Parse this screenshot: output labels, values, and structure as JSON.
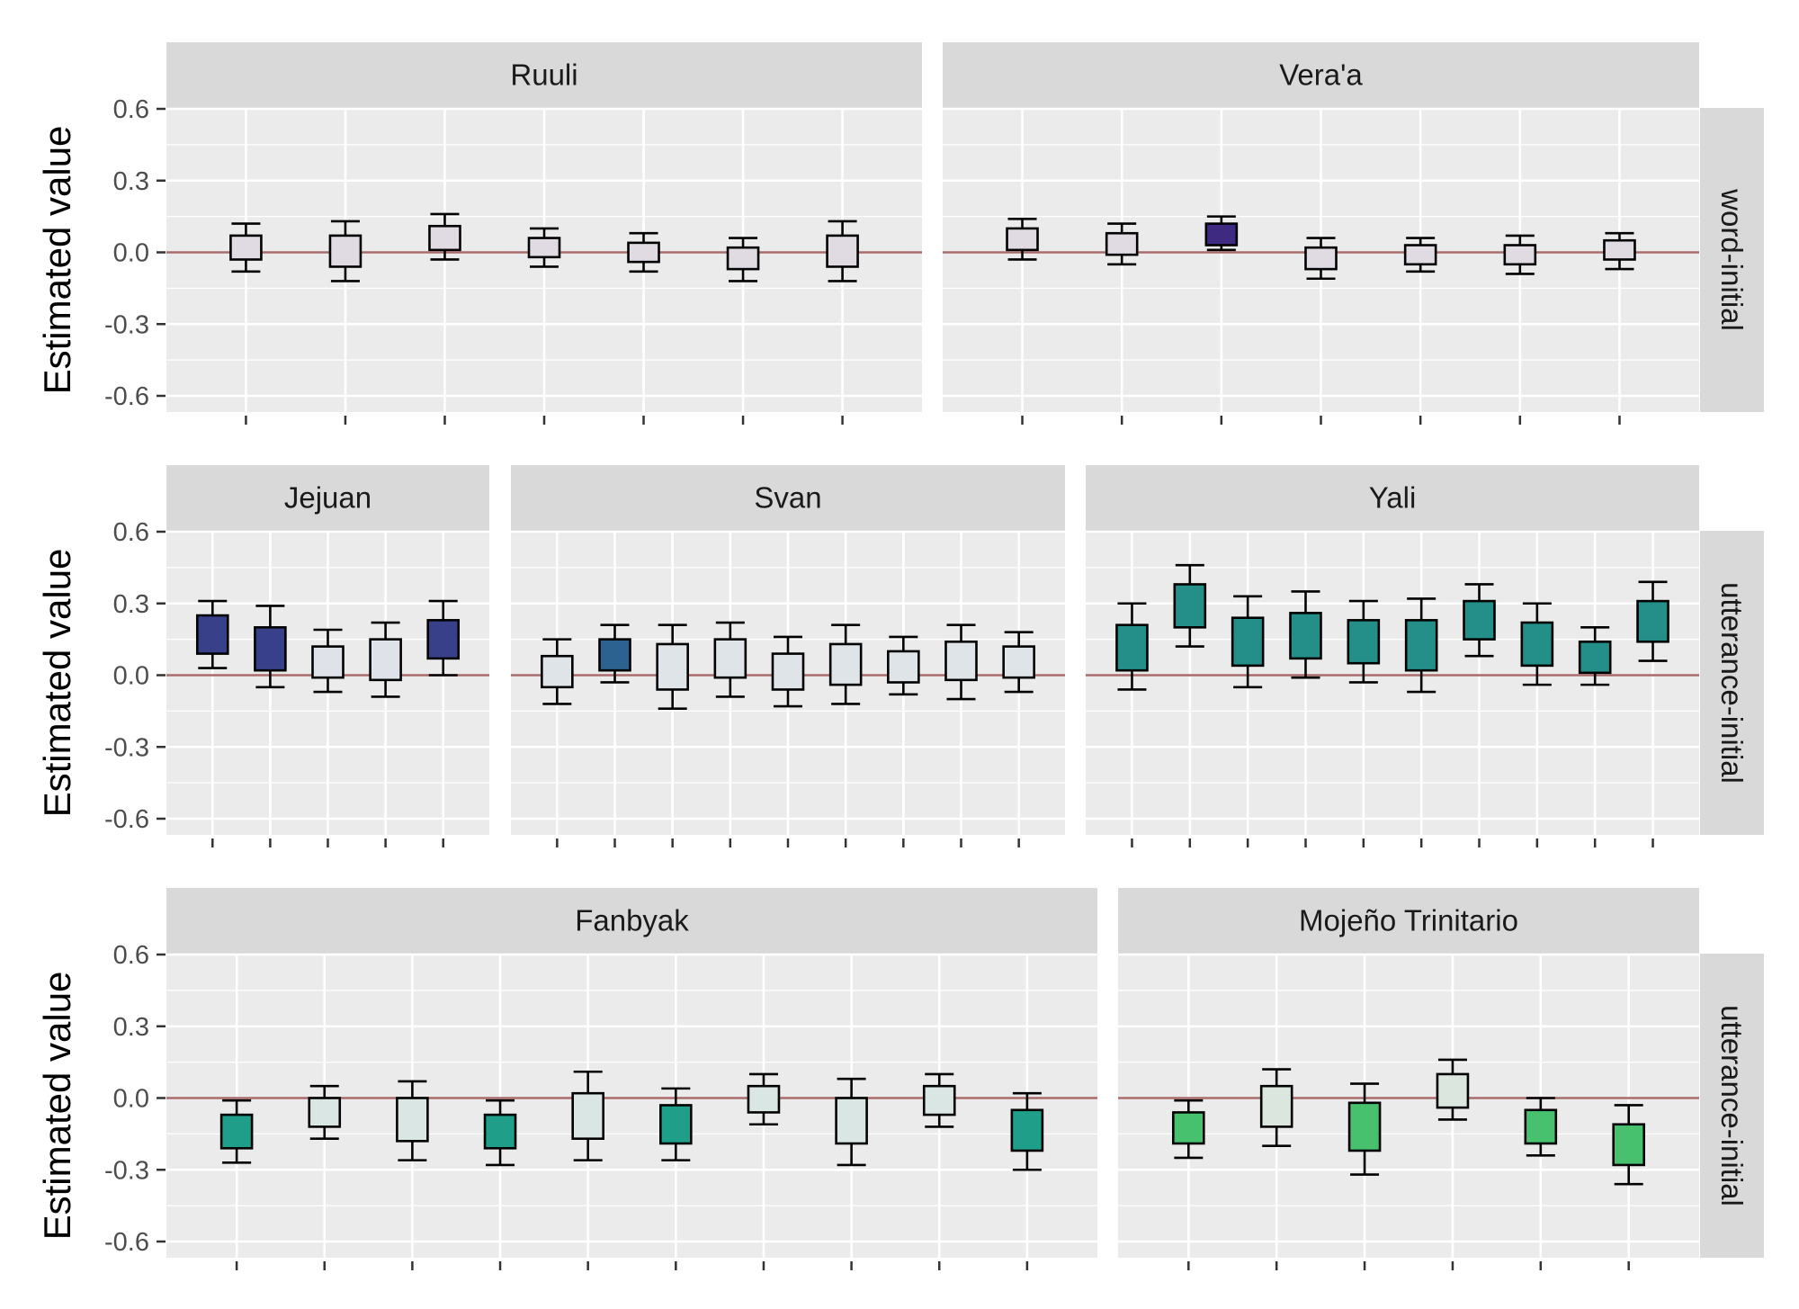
{
  "chart_data": {
    "type": "boxplot",
    "ylabel": "Estimated value",
    "yticks": [
      0.6,
      0.3,
      0.0,
      -0.3,
      -0.6
    ],
    "ytick_labels": [
      "0.6",
      "0.3",
      "0.0",
      "-0.3",
      "-0.6"
    ],
    "ylim": [
      -0.66,
      0.6
    ],
    "reference_line": 0.0,
    "colors": {
      "panel_background": "#ebebeb",
      "strip_background": "#d9d9d9",
      "grid": "#ffffff",
      "reference_line": "#a86b6b",
      "box_outline": "#000000"
    },
    "rows": [
      {
        "label": "word-initial",
        "panels": [
          {
            "title": "Ruuli",
            "boxes": [
              {
                "lo": -0.08,
                "q1": -0.03,
                "q3": 0.07,
                "hi": 0.12,
                "fill": "#e0dbe3"
              },
              {
                "lo": -0.12,
                "q1": -0.06,
                "q3": 0.07,
                "hi": 0.13,
                "fill": "#e0dbe3"
              },
              {
                "lo": -0.03,
                "q1": 0.01,
                "q3": 0.11,
                "hi": 0.16,
                "fill": "#e0dbe3"
              },
              {
                "lo": -0.06,
                "q1": -0.02,
                "q3": 0.06,
                "hi": 0.1,
                "fill": "#e0dbe3"
              },
              {
                "lo": -0.08,
                "q1": -0.04,
                "q3": 0.04,
                "hi": 0.08,
                "fill": "#e0dbe3"
              },
              {
                "lo": -0.12,
                "q1": -0.07,
                "q3": 0.02,
                "hi": 0.06,
                "fill": "#e0dbe3"
              },
              {
                "lo": -0.12,
                "q1": -0.06,
                "q3": 0.07,
                "hi": 0.13,
                "fill": "#e0dbe3"
              }
            ]
          },
          {
            "title": "Vera'a",
            "boxes": [
              {
                "lo": -0.03,
                "q1": 0.01,
                "q3": 0.1,
                "hi": 0.14,
                "fill": "#e0dbe3"
              },
              {
                "lo": -0.05,
                "q1": -0.01,
                "q3": 0.08,
                "hi": 0.12,
                "fill": "#e0dbe3"
              },
              {
                "lo": 0.01,
                "q1": 0.03,
                "q3": 0.12,
                "hi": 0.15,
                "fill": "#3f2a82"
              },
              {
                "lo": -0.11,
                "q1": -0.07,
                "q3": 0.02,
                "hi": 0.06,
                "fill": "#e0dbe3"
              },
              {
                "lo": -0.08,
                "q1": -0.05,
                "q3": 0.03,
                "hi": 0.06,
                "fill": "#e0dbe3"
              },
              {
                "lo": -0.09,
                "q1": -0.05,
                "q3": 0.03,
                "hi": 0.07,
                "fill": "#e0dbe3"
              },
              {
                "lo": -0.07,
                "q1": -0.03,
                "q3": 0.05,
                "hi": 0.08,
                "fill": "#e0dbe3"
              }
            ]
          }
        ]
      },
      {
        "label": "utterance-initial",
        "panels": [
          {
            "title": "Jejuan",
            "boxes": [
              {
                "lo": 0.03,
                "q1": 0.09,
                "q3": 0.25,
                "hi": 0.31,
                "fill": "#38408a"
              },
              {
                "lo": -0.05,
                "q1": 0.02,
                "q3": 0.2,
                "hi": 0.29,
                "fill": "#38408a"
              },
              {
                "lo": -0.07,
                "q1": -0.01,
                "q3": 0.12,
                "hi": 0.19,
                "fill": "#dfe2e8"
              },
              {
                "lo": -0.09,
                "q1": -0.02,
                "q3": 0.15,
                "hi": 0.22,
                "fill": "#dfe2e8"
              },
              {
                "lo": 0.0,
                "q1": 0.07,
                "q3": 0.23,
                "hi": 0.31,
                "fill": "#38408a"
              }
            ]
          },
          {
            "title": "Svan",
            "boxes": [
              {
                "lo": -0.12,
                "q1": -0.05,
                "q3": 0.08,
                "hi": 0.15,
                "fill": "#dfe4e8"
              },
              {
                "lo": -0.03,
                "q1": 0.02,
                "q3": 0.15,
                "hi": 0.21,
                "fill": "#2b6290"
              },
              {
                "lo": -0.14,
                "q1": -0.06,
                "q3": 0.13,
                "hi": 0.21,
                "fill": "#dfe4e8"
              },
              {
                "lo": -0.09,
                "q1": -0.01,
                "q3": 0.15,
                "hi": 0.22,
                "fill": "#dfe4e8"
              },
              {
                "lo": -0.13,
                "q1": -0.06,
                "q3": 0.09,
                "hi": 0.16,
                "fill": "#dfe4e8"
              },
              {
                "lo": -0.12,
                "q1": -0.04,
                "q3": 0.13,
                "hi": 0.21,
                "fill": "#dfe4e8"
              },
              {
                "lo": -0.08,
                "q1": -0.03,
                "q3": 0.1,
                "hi": 0.16,
                "fill": "#dfe4e8"
              },
              {
                "lo": -0.1,
                "q1": -0.02,
                "q3": 0.14,
                "hi": 0.21,
                "fill": "#dfe4e8"
              },
              {
                "lo": -0.07,
                "q1": -0.01,
                "q3": 0.12,
                "hi": 0.18,
                "fill": "#dfe4e8"
              }
            ]
          },
          {
            "title": "Yali",
            "boxes": [
              {
                "lo": -0.06,
                "q1": 0.02,
                "q3": 0.21,
                "hi": 0.3,
                "fill": "#248e88"
              },
              {
                "lo": 0.12,
                "q1": 0.2,
                "q3": 0.38,
                "hi": 0.46,
                "fill": "#248e88"
              },
              {
                "lo": -0.05,
                "q1": 0.04,
                "q3": 0.24,
                "hi": 0.33,
                "fill": "#248e88"
              },
              {
                "lo": -0.01,
                "q1": 0.07,
                "q3": 0.26,
                "hi": 0.35,
                "fill": "#248e88"
              },
              {
                "lo": -0.03,
                "q1": 0.05,
                "q3": 0.23,
                "hi": 0.31,
                "fill": "#248e88"
              },
              {
                "lo": -0.07,
                "q1": 0.02,
                "q3": 0.23,
                "hi": 0.32,
                "fill": "#248e88"
              },
              {
                "lo": 0.08,
                "q1": 0.15,
                "q3": 0.31,
                "hi": 0.38,
                "fill": "#248e88"
              },
              {
                "lo": -0.04,
                "q1": 0.04,
                "q3": 0.22,
                "hi": 0.3,
                "fill": "#248e88"
              },
              {
                "lo": -0.04,
                "q1": 0.01,
                "q3": 0.14,
                "hi": 0.2,
                "fill": "#248e88"
              },
              {
                "lo": 0.06,
                "q1": 0.14,
                "q3": 0.31,
                "hi": 0.39,
                "fill": "#248e88"
              }
            ]
          }
        ]
      },
      {
        "label": "utterance-initial",
        "panels": [
          {
            "title": "Fanbyak",
            "boxes": [
              {
                "lo": -0.27,
                "q1": -0.21,
                "q3": -0.07,
                "hi": -0.01,
                "fill": "#1f9e89"
              },
              {
                "lo": -0.17,
                "q1": -0.12,
                "q3": 0.0,
                "hi": 0.05,
                "fill": "#dae6e4"
              },
              {
                "lo": -0.26,
                "q1": -0.18,
                "q3": 0.0,
                "hi": 0.07,
                "fill": "#dae6e4"
              },
              {
                "lo": -0.28,
                "q1": -0.21,
                "q3": -0.07,
                "hi": -0.01,
                "fill": "#1f9e89"
              },
              {
                "lo": -0.26,
                "q1": -0.17,
                "q3": 0.02,
                "hi": 0.11,
                "fill": "#dae6e4"
              },
              {
                "lo": -0.26,
                "q1": -0.19,
                "q3": -0.03,
                "hi": 0.04,
                "fill": "#1f9e89"
              },
              {
                "lo": -0.11,
                "q1": -0.06,
                "q3": 0.05,
                "hi": 0.1,
                "fill": "#dae6e4"
              },
              {
                "lo": -0.28,
                "q1": -0.19,
                "q3": 0.0,
                "hi": 0.08,
                "fill": "#dae6e4"
              },
              {
                "lo": -0.12,
                "q1": -0.07,
                "q3": 0.05,
                "hi": 0.1,
                "fill": "#dae6e4"
              },
              {
                "lo": -0.3,
                "q1": -0.22,
                "q3": -0.05,
                "hi": 0.02,
                "fill": "#1f9e89"
              }
            ]
          },
          {
            "title": "Mojeño Trinitario",
            "boxes": [
              {
                "lo": -0.25,
                "q1": -0.19,
                "q3": -0.06,
                "hi": -0.01,
                "fill": "#47c16e"
              },
              {
                "lo": -0.2,
                "q1": -0.12,
                "q3": 0.05,
                "hi": 0.12,
                "fill": "#dbe6df"
              },
              {
                "lo": -0.32,
                "q1": -0.22,
                "q3": -0.02,
                "hi": 0.06,
                "fill": "#47c16e"
              },
              {
                "lo": -0.09,
                "q1": -0.04,
                "q3": 0.1,
                "hi": 0.16,
                "fill": "#dbe6df"
              },
              {
                "lo": -0.24,
                "q1": -0.19,
                "q3": -0.05,
                "hi": 0.0,
                "fill": "#47c16e"
              },
              {
                "lo": -0.36,
                "q1": -0.28,
                "q3": -0.11,
                "hi": -0.03,
                "fill": "#47c16e"
              }
            ]
          }
        ]
      }
    ]
  }
}
